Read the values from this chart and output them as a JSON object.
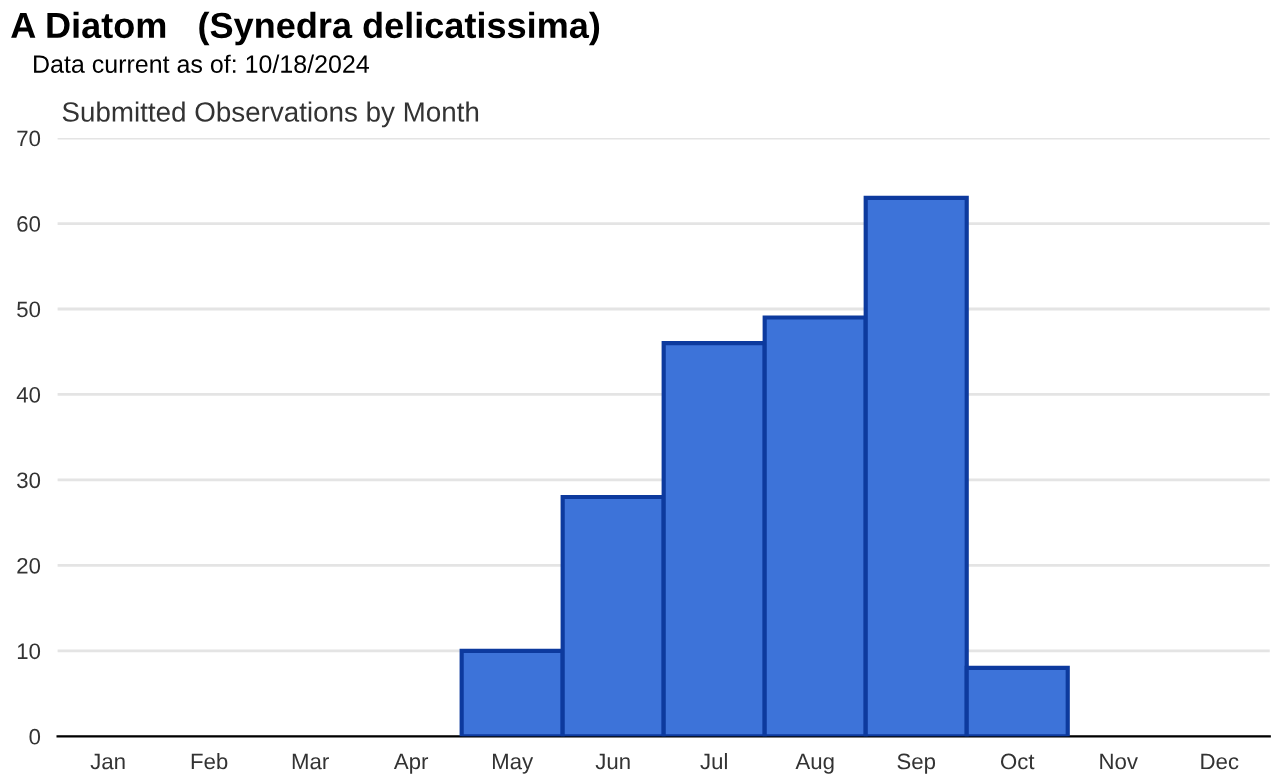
{
  "chart_data": {
    "type": "bar",
    "title": "A Diatom   (Synedra delicatissima)",
    "subtitle": "Data current as of: 10/18/2024",
    "annotations": [
      "Submitted Observations by Month"
    ],
    "categories": [
      "Jan",
      "Feb",
      "Mar",
      "Apr",
      "May",
      "Jun",
      "Jul",
      "Aug",
      "Sep",
      "Oct",
      "Nov",
      "Dec"
    ],
    "values": [
      0,
      0,
      0,
      0,
      10,
      28,
      46,
      49,
      63,
      8,
      0,
      0
    ],
    "color": "#3d73d9",
    "ylim": [
      0,
      70
    ],
    "yticks": [
      0,
      10,
      20,
      30,
      40,
      50,
      60,
      70
    ],
    "grid": "y",
    "legend": false
  }
}
